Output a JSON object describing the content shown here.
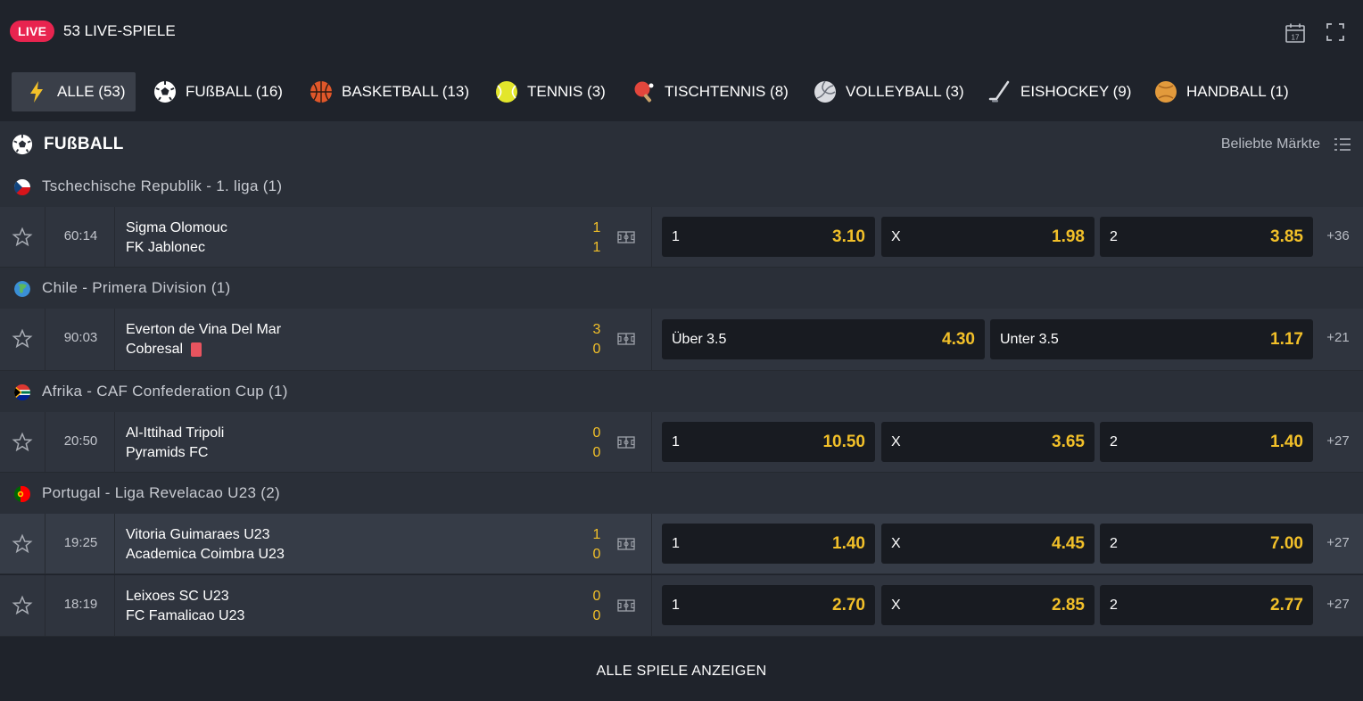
{
  "header": {
    "live_badge": "LIVE",
    "live_count": "53 LIVE-SPIELE",
    "calendar_day": "17"
  },
  "tabs": [
    {
      "label": "ALLE (53)",
      "icon": "lightning-icon",
      "active": true
    },
    {
      "label": "FUßBALL (16)",
      "icon": "soccer-ball-icon"
    },
    {
      "label": "BASKETBALL (13)",
      "icon": "basketball-icon"
    },
    {
      "label": "TENNIS (3)",
      "icon": "tennis-ball-icon"
    },
    {
      "label": "TISCHTENNIS (8)",
      "icon": "table-tennis-icon"
    },
    {
      "label": "VOLLEYBALL (3)",
      "icon": "volleyball-icon"
    },
    {
      "label": "EISHOCKEY (9)",
      "icon": "ice-hockey-icon"
    },
    {
      "label": "HANDBALL (1)",
      "icon": "handball-icon"
    }
  ],
  "section": {
    "title": "FUßBALL",
    "markets_label": "Beliebte Märkte"
  },
  "leagues": [
    {
      "name": "Tschechische Republik - 1. liga (1)",
      "flag": "czech-flag",
      "matches": [
        {
          "time": "60:14",
          "home": "Sigma Olomouc",
          "away": "FK Jablonec",
          "score_home": "1",
          "score_away": "1",
          "odds": [
            {
              "label": "1",
              "value": "3.10"
            },
            {
              "label": "X",
              "value": "1.98"
            },
            {
              "label": "2",
              "value": "3.85"
            }
          ],
          "more": "+36"
        }
      ]
    },
    {
      "name": "Chile - Primera Division (1)",
      "flag": "globe-flag",
      "matches": [
        {
          "time": "90:03",
          "home": "Everton de Vina Del Mar",
          "away": "Cobresal",
          "score_home": "3",
          "score_away": "0",
          "odds": [
            {
              "label": "Über 3.5",
              "value": "4.30"
            },
            {
              "label": "Unter 3.5",
              "value": "1.17"
            }
          ],
          "more": "+21"
        }
      ]
    },
    {
      "name": "Afrika - CAF Confederation Cup (1)",
      "flag": "south-africa-flag",
      "matches": [
        {
          "time": "20:50",
          "home": "Al-Ittihad Tripoli",
          "away": "Pyramids FC",
          "score_home": "0",
          "score_away": "0",
          "odds": [
            {
              "label": "1",
              "value": "10.50"
            },
            {
              "label": "X",
              "value": "3.65"
            },
            {
              "label": "2",
              "value": "1.40"
            }
          ],
          "more": "+27"
        }
      ]
    },
    {
      "name": "Portugal - Liga Revelacao U23 (2)",
      "flag": "portugal-flag",
      "matches": [
        {
          "time": "19:25",
          "home": "Vitoria Guimaraes U23",
          "away": "Academica Coimbra U23",
          "score_home": "1",
          "score_away": "0",
          "odds": [
            {
              "label": "1",
              "value": "1.40"
            },
            {
              "label": "X",
              "value": "4.45"
            },
            {
              "label": "2",
              "value": "7.00"
            }
          ],
          "more": "+27"
        },
        {
          "time": "18:19",
          "home": "Leixoes SC U23",
          "away": "FC Famalicao U23",
          "score_home": "0",
          "score_away": "0",
          "odds": [
            {
              "label": "1",
              "value": "2.70"
            },
            {
              "label": "X",
              "value": "2.85"
            },
            {
              "label": "2",
              "value": "2.77"
            }
          ],
          "more": "+27"
        }
      ]
    }
  ],
  "footer": {
    "show_all": "ALLE SPIELE ANZEIGEN"
  },
  "colors": {
    "background": "#1f232b",
    "row": "#2f343e",
    "odd_box": "#181b21",
    "odd_value": "#f2c029",
    "live_badge": "#e8244f",
    "red_card": "#e8545f"
  }
}
